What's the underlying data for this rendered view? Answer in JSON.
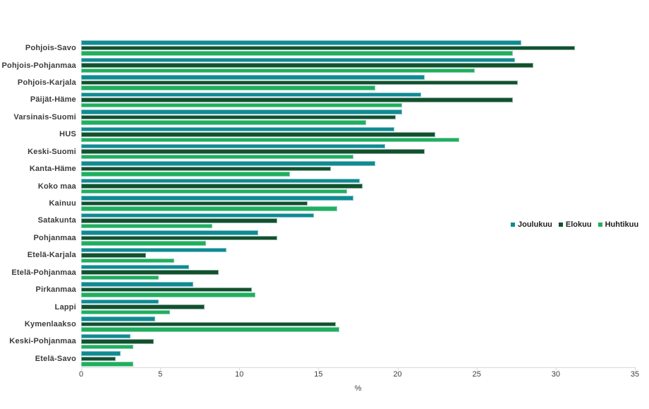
{
  "chart_data": {
    "type": "bar",
    "orientation": "horizontal",
    "title": "",
    "xlabel": "%",
    "ylabel": "",
    "xlim": [
      0,
      35
    ],
    "xticks": [
      0,
      5,
      10,
      15,
      20,
      25,
      30,
      35
    ],
    "grid": false,
    "legend_position": "right-middle",
    "categories": [
      "Pohjois-Savo",
      "Pohjois-Pohjanmaa",
      "Pohjois-Karjala",
      "Päijät-Häme",
      "Varsinais-Suomi",
      "HUS",
      "Keski-Suomi",
      "Kanta-Häme",
      "Koko maa",
      "Kainuu",
      "Satakunta",
      "Pohjanmaa",
      "Etelä-Karjala",
      "Etelä-Pohjanmaa",
      "Pirkanmaa",
      "Lappi",
      "Kymenlaakso",
      "Keski-Pohjanmaa",
      "Etelä-Savo"
    ],
    "series": [
      {
        "name": "Joulukuu",
        "color": "#0f8b91",
        "values": [
          27.8,
          27.4,
          21.7,
          21.5,
          20.3,
          19.8,
          19.2,
          18.6,
          17.6,
          17.2,
          14.7,
          11.2,
          9.2,
          6.8,
          7.1,
          4.9,
          4.7,
          3.1,
          2.5
        ]
      },
      {
        "name": "Elokuu",
        "color": "#14512b",
        "values": [
          31.2,
          28.6,
          27.6,
          27.3,
          19.9,
          22.4,
          21.7,
          15.8,
          17.8,
          14.3,
          12.4,
          12.4,
          4.1,
          8.7,
          10.8,
          7.8,
          16.1,
          4.6,
          2.2
        ]
      },
      {
        "name": "Huhtikuu",
        "color": "#1fb05b",
        "values": [
          27.3,
          24.9,
          18.6,
          20.3,
          18.0,
          23.9,
          17.2,
          13.2,
          16.8,
          16.2,
          8.3,
          7.9,
          5.9,
          4.9,
          11.0,
          5.6,
          16.3,
          3.3,
          3.3
        ]
      }
    ]
  },
  "layout_colors": {
    "axis_line": "#d9d9d9",
    "tick_text": "#404040",
    "category_text": "#3b3b3b"
  }
}
